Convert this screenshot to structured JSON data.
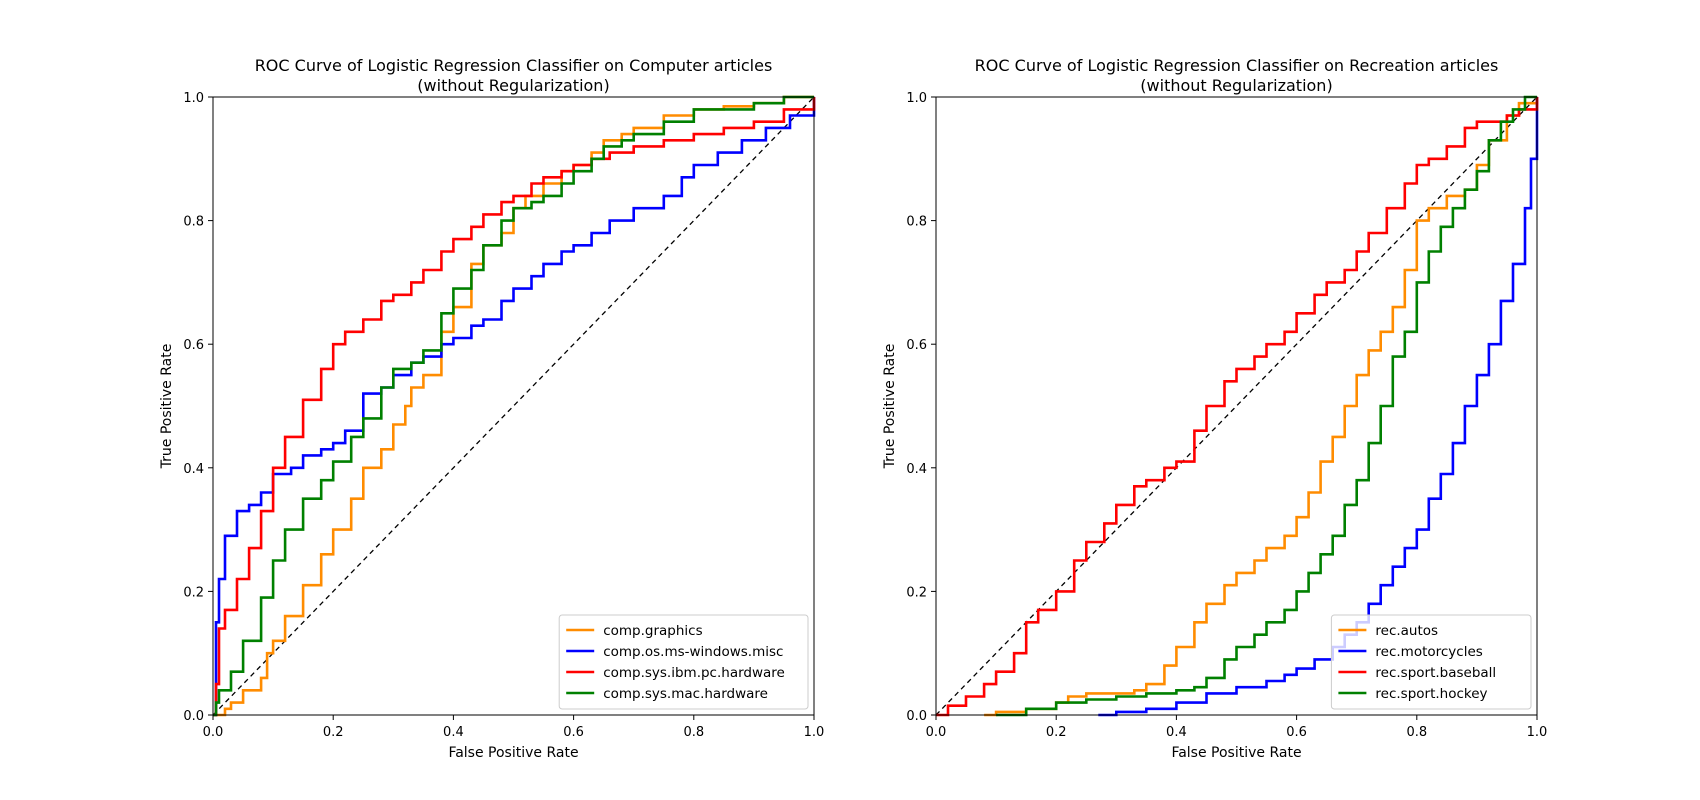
{
  "chart_data": [
    {
      "type": "line",
      "title": "ROC Curve of Logistic Regression Classifier on Computer articles",
      "subtitle": "(without Regularization)",
      "xlabel": "False Positive Rate",
      "ylabel": "True Positive Rate",
      "xlim": [
        0,
        1
      ],
      "ylim": [
        0,
        1
      ],
      "xticks": [
        "0.0",
        "0.2",
        "0.4",
        "0.6",
        "0.8",
        "1.0"
      ],
      "yticks": [
        "0.0",
        "0.2",
        "0.4",
        "0.6",
        "0.8",
        "1.0"
      ],
      "grid": false,
      "legend_position": "lower right",
      "reference_line": {
        "x": [
          0,
          1
        ],
        "y": [
          0,
          1
        ],
        "style": "dashed",
        "color": "#000000"
      },
      "series": [
        {
          "name": "comp.graphics",
          "color": "#ff8c00",
          "x": [
            0.0,
            0.02,
            0.03,
            0.05,
            0.08,
            0.09,
            0.1,
            0.12,
            0.15,
            0.18,
            0.2,
            0.23,
            0.25,
            0.28,
            0.3,
            0.32,
            0.33,
            0.35,
            0.38,
            0.4,
            0.43,
            0.45,
            0.48,
            0.5,
            0.52,
            0.55,
            0.58,
            0.6,
            0.63,
            0.65,
            0.68,
            0.7,
            0.75,
            0.8,
            0.85,
            0.9,
            0.93,
            0.95,
            0.97,
            1.0
          ],
          "y": [
            0.0,
            0.01,
            0.02,
            0.04,
            0.06,
            0.1,
            0.12,
            0.16,
            0.21,
            0.26,
            0.3,
            0.35,
            0.4,
            0.43,
            0.47,
            0.5,
            0.53,
            0.55,
            0.62,
            0.66,
            0.73,
            0.76,
            0.78,
            0.82,
            0.84,
            0.86,
            0.88,
            0.89,
            0.91,
            0.93,
            0.94,
            0.95,
            0.97,
            0.98,
            0.985,
            0.99,
            0.99,
            1.0,
            1.0,
            1.0
          ]
        },
        {
          "name": "comp.os.ms-windows.misc",
          "color": "#0000ff",
          "x": [
            0.0,
            0.005,
            0.01,
            0.02,
            0.04,
            0.06,
            0.08,
            0.1,
            0.13,
            0.15,
            0.18,
            0.2,
            0.22,
            0.25,
            0.28,
            0.3,
            0.33,
            0.35,
            0.38,
            0.4,
            0.43,
            0.45,
            0.48,
            0.5,
            0.53,
            0.55,
            0.58,
            0.6,
            0.63,
            0.66,
            0.7,
            0.75,
            0.78,
            0.8,
            0.84,
            0.88,
            0.92,
            0.96,
            1.0
          ],
          "y": [
            0.0,
            0.15,
            0.22,
            0.29,
            0.33,
            0.34,
            0.36,
            0.39,
            0.4,
            0.42,
            0.43,
            0.44,
            0.46,
            0.52,
            0.53,
            0.55,
            0.57,
            0.58,
            0.6,
            0.61,
            0.63,
            0.64,
            0.67,
            0.69,
            0.71,
            0.73,
            0.75,
            0.76,
            0.78,
            0.8,
            0.82,
            0.84,
            0.87,
            0.89,
            0.91,
            0.93,
            0.95,
            0.97,
            1.0
          ]
        },
        {
          "name": "comp.sys.ibm.pc.hardware",
          "color": "#ff0000",
          "x": [
            0.0,
            0.005,
            0.01,
            0.02,
            0.04,
            0.06,
            0.08,
            0.1,
            0.12,
            0.15,
            0.18,
            0.2,
            0.22,
            0.25,
            0.28,
            0.3,
            0.33,
            0.35,
            0.38,
            0.4,
            0.43,
            0.45,
            0.48,
            0.5,
            0.53,
            0.55,
            0.58,
            0.6,
            0.63,
            0.66,
            0.7,
            0.75,
            0.8,
            0.85,
            0.9,
            0.95,
            1.0
          ],
          "y": [
            0.0,
            0.05,
            0.14,
            0.17,
            0.22,
            0.27,
            0.33,
            0.4,
            0.45,
            0.51,
            0.56,
            0.6,
            0.62,
            0.64,
            0.67,
            0.68,
            0.7,
            0.72,
            0.75,
            0.77,
            0.79,
            0.81,
            0.83,
            0.84,
            0.86,
            0.87,
            0.88,
            0.89,
            0.9,
            0.91,
            0.92,
            0.93,
            0.94,
            0.95,
            0.96,
            0.98,
            1.0
          ]
        },
        {
          "name": "comp.sys.mac.hardware",
          "color": "#008000",
          "x": [
            0.0,
            0.005,
            0.01,
            0.03,
            0.05,
            0.08,
            0.1,
            0.12,
            0.15,
            0.18,
            0.2,
            0.23,
            0.25,
            0.28,
            0.3,
            0.33,
            0.35,
            0.38,
            0.4,
            0.43,
            0.45,
            0.48,
            0.5,
            0.53,
            0.55,
            0.58,
            0.6,
            0.63,
            0.65,
            0.68,
            0.7,
            0.75,
            0.8,
            0.85,
            0.9,
            0.95,
            1.0
          ],
          "y": [
            0.0,
            0.02,
            0.04,
            0.07,
            0.12,
            0.19,
            0.25,
            0.3,
            0.35,
            0.38,
            0.41,
            0.45,
            0.48,
            0.53,
            0.56,
            0.57,
            0.59,
            0.65,
            0.69,
            0.72,
            0.76,
            0.8,
            0.82,
            0.83,
            0.84,
            0.86,
            0.88,
            0.9,
            0.92,
            0.93,
            0.94,
            0.96,
            0.98,
            0.98,
            0.99,
            1.0,
            1.0
          ]
        }
      ]
    },
    {
      "type": "line",
      "title": "ROC Curve of Logistic Regression Classifier on Recreation articles",
      "subtitle": "(without Regularization)",
      "xlabel": "False Positive Rate",
      "ylabel": "True Positive Rate",
      "xlim": [
        0,
        1
      ],
      "ylim": [
        0,
        1
      ],
      "xticks": [
        "0.0",
        "0.2",
        "0.4",
        "0.6",
        "0.8",
        "1.0"
      ],
      "yticks": [
        "0.0",
        "0.2",
        "0.4",
        "0.6",
        "0.8",
        "1.0"
      ],
      "grid": false,
      "legend_position": "lower right",
      "reference_line": {
        "x": [
          0,
          1
        ],
        "y": [
          0,
          1
        ],
        "style": "dashed",
        "color": "#000000"
      },
      "series": [
        {
          "name": "rec.autos",
          "color": "#ff8c00",
          "x": [
            0.08,
            0.1,
            0.15,
            0.2,
            0.22,
            0.25,
            0.3,
            0.33,
            0.35,
            0.38,
            0.4,
            0.43,
            0.45,
            0.48,
            0.5,
            0.53,
            0.55,
            0.58,
            0.6,
            0.62,
            0.64,
            0.66,
            0.68,
            0.7,
            0.72,
            0.74,
            0.76,
            0.78,
            0.8,
            0.82,
            0.85,
            0.88,
            0.9,
            0.92,
            0.95,
            0.97,
            1.0
          ],
          "y": [
            0.0,
            0.005,
            0.01,
            0.02,
            0.03,
            0.035,
            0.035,
            0.04,
            0.05,
            0.08,
            0.11,
            0.15,
            0.18,
            0.21,
            0.23,
            0.25,
            0.27,
            0.29,
            0.32,
            0.36,
            0.41,
            0.45,
            0.5,
            0.55,
            0.59,
            0.62,
            0.66,
            0.72,
            0.8,
            0.82,
            0.84,
            0.85,
            0.89,
            0.93,
            0.97,
            0.99,
            1.0
          ]
        },
        {
          "name": "rec.motorcycles",
          "color": "#0000ff",
          "x": [
            0.27,
            0.3,
            0.35,
            0.4,
            0.45,
            0.5,
            0.55,
            0.58,
            0.6,
            0.63,
            0.66,
            0.68,
            0.7,
            0.72,
            0.74,
            0.76,
            0.78,
            0.8,
            0.82,
            0.84,
            0.86,
            0.88,
            0.9,
            0.92,
            0.94,
            0.96,
            0.98,
            0.99,
            1.0
          ],
          "y": [
            0.0,
            0.005,
            0.01,
            0.02,
            0.035,
            0.045,
            0.055,
            0.065,
            0.075,
            0.09,
            0.11,
            0.13,
            0.15,
            0.18,
            0.21,
            0.24,
            0.27,
            0.3,
            0.35,
            0.39,
            0.44,
            0.5,
            0.55,
            0.6,
            0.67,
            0.73,
            0.82,
            0.9,
            1.0
          ]
        },
        {
          "name": "rec.sport.baseball",
          "color": "#ff0000",
          "x": [
            0.0,
            0.02,
            0.05,
            0.08,
            0.1,
            0.13,
            0.15,
            0.17,
            0.2,
            0.23,
            0.25,
            0.28,
            0.3,
            0.33,
            0.35,
            0.38,
            0.4,
            0.43,
            0.45,
            0.48,
            0.5,
            0.53,
            0.55,
            0.58,
            0.6,
            0.63,
            0.65,
            0.68,
            0.7,
            0.72,
            0.75,
            0.78,
            0.8,
            0.82,
            0.85,
            0.88,
            0.9,
            0.93,
            0.95,
            0.97,
            1.0
          ],
          "y": [
            0.0,
            0.015,
            0.03,
            0.05,
            0.07,
            0.1,
            0.15,
            0.17,
            0.2,
            0.25,
            0.28,
            0.31,
            0.34,
            0.37,
            0.38,
            0.4,
            0.41,
            0.46,
            0.5,
            0.54,
            0.56,
            0.58,
            0.6,
            0.62,
            0.65,
            0.68,
            0.7,
            0.72,
            0.75,
            0.78,
            0.82,
            0.86,
            0.89,
            0.9,
            0.92,
            0.95,
            0.96,
            0.96,
            0.97,
            0.98,
            1.0
          ]
        },
        {
          "name": "rec.sport.hockey",
          "color": "#008000",
          "x": [
            0.1,
            0.15,
            0.2,
            0.25,
            0.3,
            0.35,
            0.4,
            0.43,
            0.45,
            0.48,
            0.5,
            0.53,
            0.55,
            0.58,
            0.6,
            0.62,
            0.64,
            0.66,
            0.68,
            0.7,
            0.72,
            0.74,
            0.76,
            0.78,
            0.8,
            0.82,
            0.84,
            0.86,
            0.88,
            0.9,
            0.92,
            0.94,
            0.96,
            0.98,
            1.0
          ],
          "y": [
            0.0,
            0.01,
            0.02,
            0.025,
            0.03,
            0.035,
            0.04,
            0.045,
            0.06,
            0.09,
            0.11,
            0.13,
            0.15,
            0.17,
            0.2,
            0.23,
            0.26,
            0.29,
            0.34,
            0.38,
            0.44,
            0.5,
            0.58,
            0.62,
            0.7,
            0.75,
            0.79,
            0.82,
            0.85,
            0.88,
            0.93,
            0.96,
            0.98,
            1.0,
            1.0
          ]
        }
      ]
    }
  ]
}
